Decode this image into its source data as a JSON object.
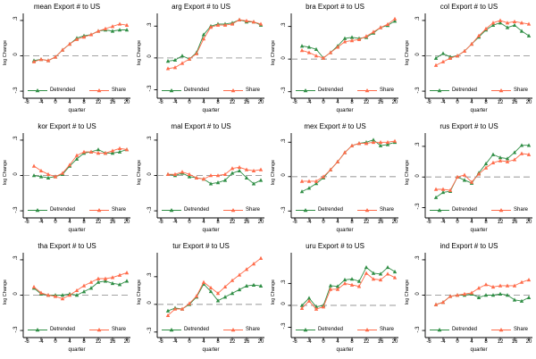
{
  "page": {
    "background": "#ffffff"
  },
  "colors": {
    "detrended": "#2f8e45",
    "share": "#ff6b4a",
    "zero_line": "#a3a3a3",
    "axis": "#000000",
    "text": "#000000"
  },
  "legend": {
    "detrended_label": "Detrended",
    "share_label": "Share"
  },
  "axes": {
    "xlabel": "quarter",
    "ylabel": "log Change",
    "xticks": [
      -8,
      -4,
      0,
      4,
      8,
      12,
      16,
      20
    ],
    "yticks": [
      {
        "label": ".3",
        "value": 0.3
      },
      {
        "label": "0",
        "value": 0
      },
      {
        "label": "-.3",
        "value": -0.3
      }
    ]
  },
  "chart_data": [
    {
      "type": "line",
      "title": "mean Export # to US",
      "x": [
        -6,
        -4,
        -2,
        0,
        2,
        4,
        6,
        8,
        10,
        12,
        14,
        16,
        18,
        20
      ],
      "xlim": [
        -9,
        21
      ],
      "ylim": [
        -0.36,
        0.36
      ],
      "series": [
        {
          "name": "Detrended",
          "values": [
            -0.04,
            -0.03,
            -0.04,
            -0.01,
            0.05,
            0.1,
            0.15,
            0.17,
            0.18,
            0.21,
            0.22,
            0.21,
            0.22,
            0.22
          ]
        },
        {
          "name": "Share",
          "values": [
            -0.05,
            -0.03,
            -0.04,
            -0.01,
            0.05,
            0.1,
            0.14,
            0.16,
            0.18,
            0.21,
            0.23,
            0.25,
            0.27,
            0.26
          ]
        }
      ]
    },
    {
      "type": "line",
      "title": "arg Export # to US",
      "x": [
        -6,
        -4,
        -2,
        0,
        2,
        4,
        6,
        8,
        10,
        12,
        14,
        16,
        18,
        20
      ],
      "xlim": [
        -9,
        21
      ],
      "ylim": [
        -0.38,
        0.42
      ],
      "series": [
        {
          "name": "Detrended",
          "values": [
            -0.03,
            -0.02,
            0.02,
            -0.01,
            0.05,
            0.22,
            0.3,
            0.32,
            0.32,
            0.33,
            0.36,
            0.34,
            0.34,
            0.31
          ]
        },
        {
          "name": "Share",
          "values": [
            -0.1,
            -0.09,
            -0.05,
            -0.01,
            0.04,
            0.18,
            0.29,
            0.31,
            0.31,
            0.32,
            0.36,
            0.35,
            0.34,
            0.32
          ]
        }
      ]
    },
    {
      "type": "line",
      "title": "bra Export # to US",
      "x": [
        -6,
        -4,
        -2,
        0,
        2,
        4,
        6,
        8,
        10,
        12,
        14,
        16,
        18,
        20
      ],
      "xlim": [
        -9,
        21
      ],
      "ylim": [
        -0.36,
        0.42
      ],
      "series": [
        {
          "name": "Detrended",
          "values": [
            0.12,
            0.11,
            0.09,
            0.01,
            0.06,
            0.12,
            0.19,
            0.2,
            0.19,
            0.2,
            0.24,
            0.29,
            0.31,
            0.35
          ]
        },
        {
          "name": "Share",
          "values": [
            0.08,
            0.06,
            0.03,
            0.01,
            0.06,
            0.11,
            0.16,
            0.17,
            0.18,
            0.21,
            0.25,
            0.29,
            0.32,
            0.37
          ]
        }
      ]
    },
    {
      "type": "line",
      "title": "col Export # to US",
      "x": [
        -6,
        -4,
        -2,
        0,
        2,
        4,
        6,
        8,
        10,
        12,
        14,
        16,
        18,
        20
      ],
      "xlim": [
        -9,
        21
      ],
      "ylim": [
        -0.36,
        0.36
      ],
      "series": [
        {
          "name": "Detrended",
          "values": [
            -0.02,
            0.02,
            -0.01,
            0.0,
            0.04,
            0.1,
            0.16,
            0.22,
            0.26,
            0.28,
            0.24,
            0.26,
            0.21,
            0.17
          ]
        },
        {
          "name": "Share",
          "values": [
            -0.08,
            -0.05,
            -0.02,
            0.0,
            0.04,
            0.1,
            0.17,
            0.23,
            0.28,
            0.3,
            0.28,
            0.29,
            0.28,
            0.27
          ]
        }
      ]
    },
    {
      "type": "line",
      "title": "kor Export # to US",
      "x": [
        -6,
        -4,
        -2,
        0,
        2,
        4,
        6,
        8,
        10,
        12,
        14,
        16,
        18,
        20
      ],
      "xlim": [
        -9,
        21
      ],
      "ylim": [
        -0.36,
        0.36
      ],
      "series": [
        {
          "name": "Detrended",
          "values": [
            0.0,
            -0.01,
            -0.02,
            -0.01,
            0.01,
            0.08,
            0.14,
            0.19,
            0.2,
            0.22,
            0.19,
            0.19,
            0.2,
            0.22
          ]
        },
        {
          "name": "Share",
          "values": [
            0.08,
            0.04,
            0.01,
            -0.01,
            0.02,
            0.09,
            0.17,
            0.2,
            0.2,
            0.19,
            0.19,
            0.21,
            0.23,
            0.22
          ]
        }
      ]
    },
    {
      "type": "line",
      "title": "mal Export # to US",
      "x": [
        -6,
        -4,
        -2,
        0,
        2,
        4,
        6,
        8,
        10,
        12,
        14,
        16,
        18,
        20
      ],
      "xlim": [
        -9,
        21
      ],
      "ylim": [
        -0.36,
        0.36
      ],
      "series": [
        {
          "name": "Detrended",
          "values": [
            0.01,
            0.0,
            0.02,
            -0.01,
            -0.02,
            -0.03,
            -0.07,
            -0.06,
            -0.04,
            0.02,
            0.04,
            -0.02,
            -0.07,
            -0.04
          ]
        },
        {
          "name": "Share",
          "values": [
            0.01,
            0.01,
            0.03,
            0.01,
            -0.02,
            -0.03,
            0.0,
            0.0,
            0.01,
            0.06,
            0.07,
            0.05,
            0.04,
            0.05
          ]
        }
      ]
    },
    {
      "type": "line",
      "title": "mex Export # to US",
      "x": [
        -6,
        -4,
        -2,
        0,
        2,
        4,
        6,
        8,
        10,
        12,
        14,
        16,
        18,
        20
      ],
      "xlim": [
        -9,
        21
      ],
      "ylim": [
        -0.36,
        0.38
      ],
      "series": [
        {
          "name": "Detrended",
          "values": [
            -0.13,
            -0.1,
            -0.06,
            -0.01,
            0.06,
            0.13,
            0.21,
            0.27,
            0.29,
            0.3,
            0.32,
            0.27,
            0.28,
            0.3
          ]
        },
        {
          "name": "Share",
          "values": [
            -0.04,
            -0.04,
            -0.04,
            0.0,
            0.06,
            0.13,
            0.21,
            0.27,
            0.29,
            0.29,
            0.3,
            0.3,
            0.3,
            0.31
          ]
        }
      ]
    },
    {
      "type": "line",
      "title": "rus Export # to US",
      "x": [
        -6,
        -4,
        -2,
        0,
        2,
        4,
        6,
        8,
        10,
        12,
        14,
        16,
        18,
        20
      ],
      "xlim": [
        -9,
        21
      ],
      "ylim": [
        -0.4,
        0.43
      ],
      "series": [
        {
          "name": "Detrended",
          "values": [
            -0.2,
            -0.15,
            -0.14,
            0.0,
            -0.03,
            -0.06,
            0.04,
            0.13,
            0.22,
            0.19,
            0.18,
            0.24,
            0.31,
            0.31
          ]
        },
        {
          "name": "Share",
          "values": [
            -0.12,
            -0.12,
            -0.13,
            0.0,
            0.02,
            -0.05,
            0.03,
            0.09,
            0.14,
            0.16,
            0.15,
            0.17,
            0.23,
            0.22
          ]
        }
      ]
    },
    {
      "type": "line",
      "title": "tha Export # to US",
      "x": [
        -6,
        -4,
        -2,
        0,
        2,
        4,
        6,
        8,
        10,
        12,
        14,
        16,
        18,
        20
      ],
      "xlim": [
        -9,
        21
      ],
      "ylim": [
        -0.36,
        0.36
      ],
      "series": [
        {
          "name": "Detrended",
          "values": [
            0.06,
            0.01,
            0.0,
            0.0,
            0.0,
            0.01,
            0.0,
            0.03,
            0.06,
            0.11,
            0.12,
            0.1,
            0.09,
            0.12
          ]
        },
        {
          "name": "Share",
          "values": [
            0.07,
            0.02,
            0.0,
            -0.01,
            -0.03,
            0.0,
            0.04,
            0.08,
            0.11,
            0.14,
            0.14,
            0.15,
            0.17,
            0.19
          ]
        }
      ]
    },
    {
      "type": "line",
      "title": "tur Export # to US",
      "x": [
        -6,
        -4,
        -2,
        0,
        2,
        4,
        6,
        8,
        10,
        12,
        14,
        16,
        18,
        20
      ],
      "xlim": [
        -9,
        21
      ],
      "ylim": [
        -0.36,
        0.56
      ],
      "series": [
        {
          "name": "Detrended",
          "values": [
            -0.07,
            -0.04,
            -0.05,
            0.0,
            0.08,
            0.22,
            0.14,
            0.04,
            0.08,
            0.12,
            0.16,
            0.2,
            0.21,
            0.2
          ]
        },
        {
          "name": "Share",
          "values": [
            -0.12,
            -0.05,
            -0.05,
            0.01,
            0.09,
            0.24,
            0.18,
            0.12,
            0.19,
            0.26,
            0.32,
            0.38,
            0.44,
            0.5
          ]
        }
      ]
    },
    {
      "type": "line",
      "title": "uru Export # to US",
      "x": [
        -6,
        -4,
        -2,
        0,
        2,
        4,
        6,
        8,
        10,
        12,
        14,
        16,
        18,
        20
      ],
      "xlim": [
        -9,
        21
      ],
      "ylim": [
        -0.44,
        0.72
      ],
      "series": [
        {
          "name": "Detrended",
          "values": [
            0.0,
            0.1,
            -0.02,
            0.0,
            0.27,
            0.26,
            0.35,
            0.36,
            0.33,
            0.52,
            0.44,
            0.43,
            0.52,
            0.46
          ]
        },
        {
          "name": "Share",
          "values": [
            -0.04,
            0.06,
            -0.05,
            -0.02,
            0.22,
            0.22,
            0.3,
            0.28,
            0.26,
            0.44,
            0.36,
            0.35,
            0.43,
            0.38
          ]
        }
      ]
    },
    {
      "type": "line",
      "title": "ind Export # to US",
      "x": [
        -6,
        -4,
        -2,
        0,
        2,
        4,
        6,
        8,
        10,
        12,
        14,
        16,
        18,
        20
      ],
      "xlim": [
        -9,
        21
      ],
      "ylim": [
        -0.36,
        0.36
      ],
      "series": [
        {
          "name": "Detrended",
          "values": [
            -0.08,
            -0.06,
            -0.01,
            0.0,
            0.0,
            0.01,
            -0.02,
            0.0,
            0.0,
            0.01,
            0.0,
            -0.04,
            -0.05,
            -0.02
          ]
        },
        {
          "name": "Share",
          "values": [
            -0.08,
            -0.06,
            -0.01,
            0.0,
            0.01,
            0.02,
            0.06,
            0.09,
            0.07,
            0.08,
            0.08,
            0.08,
            0.11,
            0.13
          ]
        }
      ]
    }
  ]
}
